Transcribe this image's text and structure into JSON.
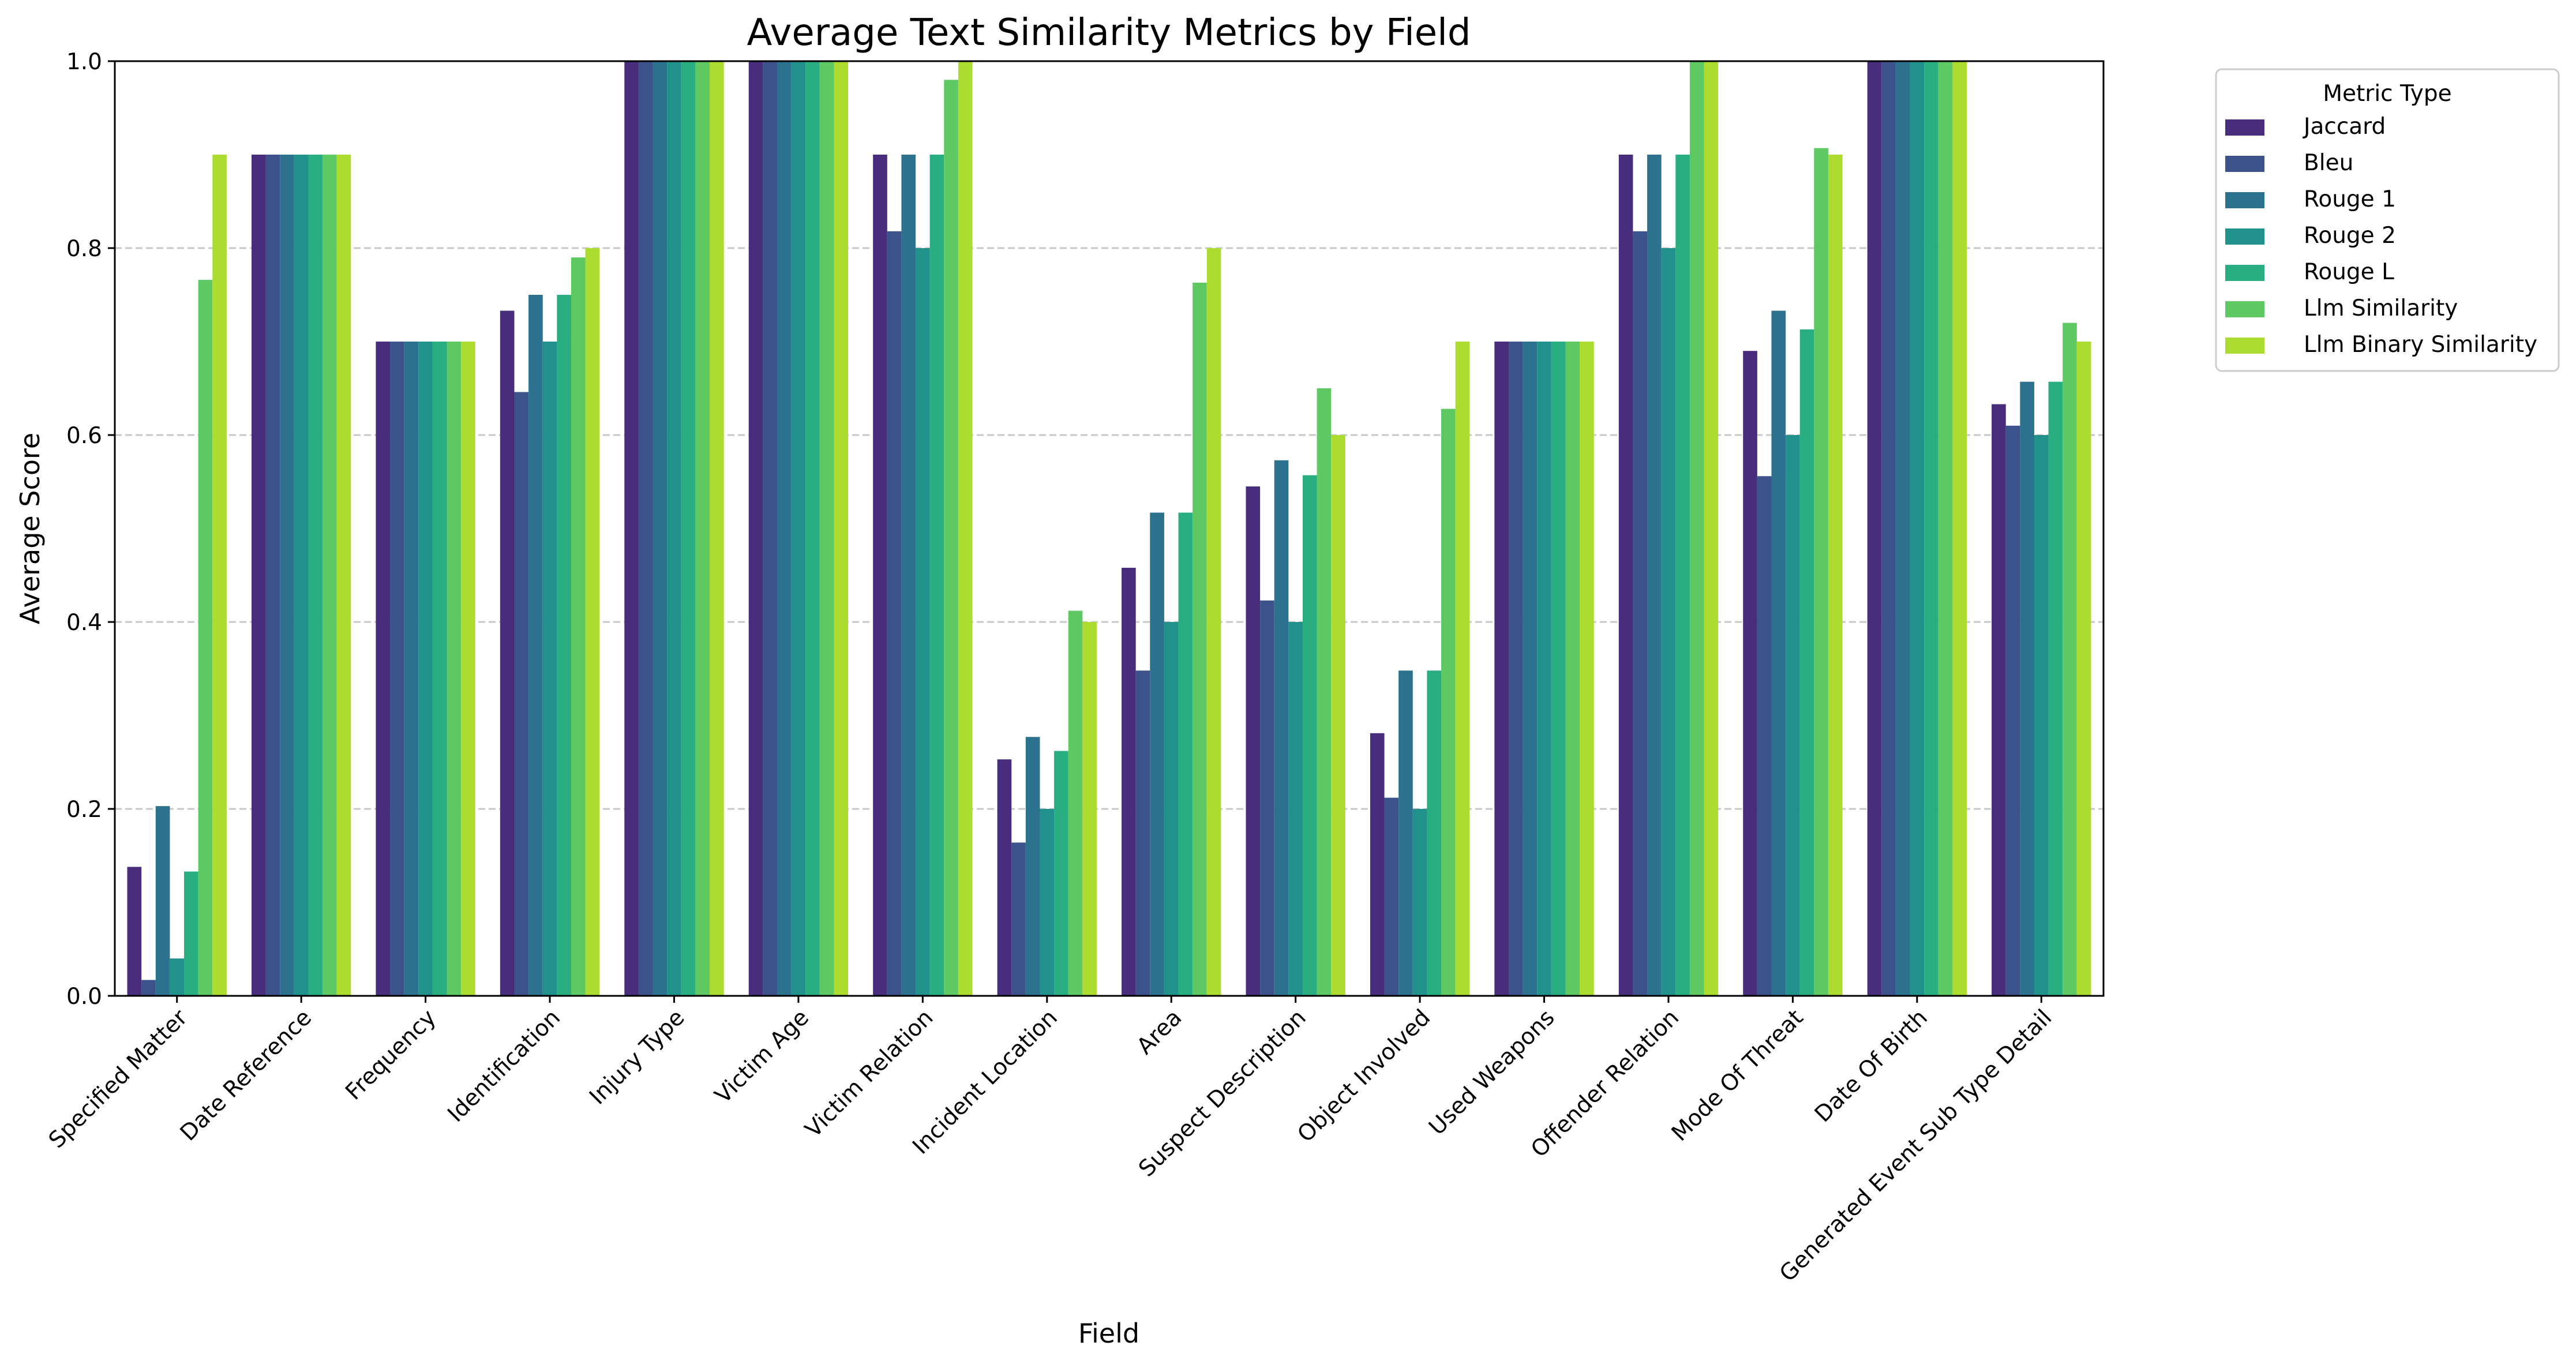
{
  "chart_data": {
    "type": "bar",
    "title": "Average Text Similarity Metrics by Field",
    "xlabel": "Field",
    "ylabel": "Average Score",
    "ylim": [
      0,
      1
    ],
    "yticks": [
      "0.0",
      "0.2",
      "0.4",
      "0.6",
      "0.8",
      "1.0"
    ],
    "grid": "horizontal dashed",
    "legend": {
      "title": "Metric Type",
      "placement": "outside right"
    },
    "categories": [
      "Specified Matter",
      "Date Reference",
      "Frequency",
      "Identification",
      "Injury Type",
      "Victim Age",
      "Victim Relation",
      "Incident Location",
      "Area",
      "Suspect Description",
      "Object Involved",
      "Used Weapons",
      "Offender Relation",
      "Mode Of Threat",
      "Date Of Birth",
      "Generated Event Sub Type Detail"
    ],
    "series": [
      {
        "name": "Jaccard",
        "color": "#472d7b",
        "values": [
          0.138,
          0.9,
          0.7,
          0.733,
          1.0,
          1.0,
          0.9,
          0.253,
          0.458,
          0.545,
          0.281,
          0.7,
          0.9,
          0.69,
          1.0,
          0.633
        ]
      },
      {
        "name": "Bleu",
        "color": "#3b528b",
        "values": [
          0.017,
          0.9,
          0.7,
          0.646,
          1.0,
          1.0,
          0.818,
          0.164,
          0.348,
          0.423,
          0.212,
          0.7,
          0.818,
          0.556,
          1.0,
          0.61
        ]
      },
      {
        "name": "Rouge 1",
        "color": "#2c728e",
        "values": [
          0.203,
          0.9,
          0.7,
          0.75,
          1.0,
          1.0,
          0.9,
          0.277,
          0.517,
          0.573,
          0.348,
          0.7,
          0.9,
          0.733,
          1.0,
          0.657
        ]
      },
      {
        "name": "Rouge 2",
        "color": "#21918c",
        "values": [
          0.04,
          0.9,
          0.7,
          0.7,
          1.0,
          1.0,
          0.8,
          0.2,
          0.4,
          0.4,
          0.2,
          0.7,
          0.8,
          0.6,
          1.0,
          0.6
        ]
      },
      {
        "name": "Rouge L",
        "color": "#28ae80",
        "values": [
          0.133,
          0.9,
          0.7,
          0.75,
          1.0,
          1.0,
          0.9,
          0.262,
          0.517,
          0.557,
          0.348,
          0.7,
          0.9,
          0.713,
          1.0,
          0.657
        ]
      },
      {
        "name": "Llm Similarity",
        "color": "#5ec962",
        "values": [
          0.766,
          0.9,
          0.7,
          0.79,
          1.0,
          1.0,
          0.98,
          0.412,
          0.763,
          0.65,
          0.628,
          0.7,
          1.0,
          0.907,
          1.0,
          0.72
        ]
      },
      {
        "name": "Llm Binary Similarity",
        "color": "#addc30",
        "values": [
          0.9,
          0.9,
          0.7,
          0.8,
          1.0,
          1.0,
          1.0,
          0.4,
          0.8,
          0.6,
          0.7,
          0.7,
          1.0,
          0.9,
          1.0,
          0.7
        ]
      }
    ]
  }
}
